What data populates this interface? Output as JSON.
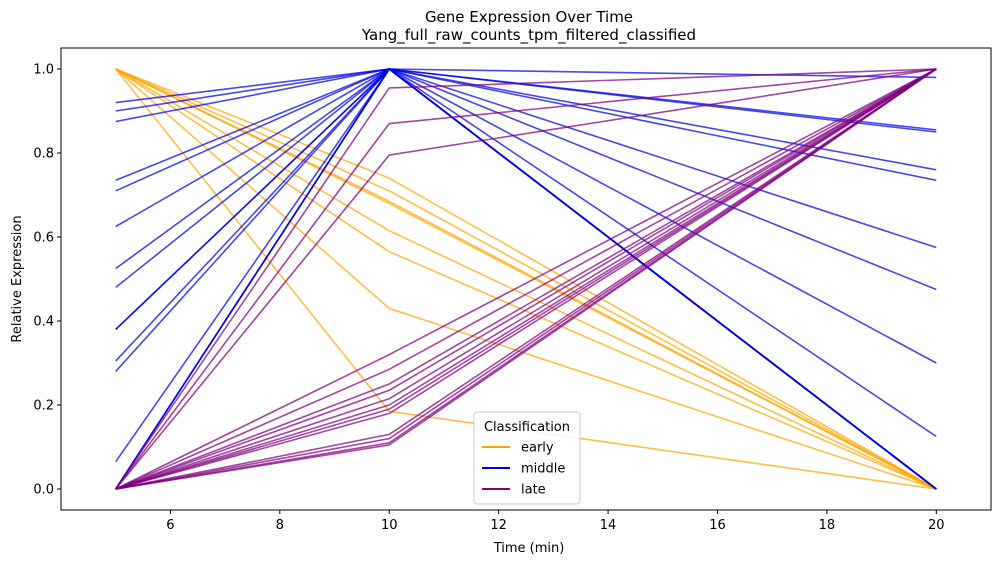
{
  "chart_data": {
    "type": "line",
    "title": "Gene Expression Over Time",
    "subtitle": "Yang_full_raw_counts_tpm_filtered_classified",
    "xlabel": "Time (min)",
    "ylabel": "Relative Expression",
    "xlim": [
      4,
      21
    ],
    "ylim": [
      -0.05,
      1.05
    ],
    "xticks": [
      6,
      8,
      10,
      12,
      14,
      16,
      18,
      20
    ],
    "yticks": [
      0.0,
      0.2,
      0.4,
      0.6,
      0.8,
      1.0
    ],
    "x": [
      5,
      10,
      20
    ],
    "grid": false,
    "legend": {
      "title": "Classification",
      "location": "lower-center",
      "entries": [
        "early",
        "middle",
        "late"
      ]
    },
    "colors": {
      "early": "#ffa500",
      "middle": "#0000ee",
      "late": "#800080"
    },
    "series": [
      {
        "class": "early",
        "values": [
          1.0,
          0.43,
          0.0
        ]
      },
      {
        "class": "early",
        "values": [
          1.0,
          0.565,
          0.0
        ]
      },
      {
        "class": "early",
        "values": [
          1.0,
          0.615,
          0.0
        ]
      },
      {
        "class": "early",
        "values": [
          1.0,
          0.68,
          0.0
        ]
      },
      {
        "class": "early",
        "values": [
          1.0,
          0.685,
          0.0
        ]
      },
      {
        "class": "early",
        "values": [
          1.0,
          0.71,
          0.0
        ]
      },
      {
        "class": "early",
        "values": [
          1.0,
          0.74,
          0.0
        ]
      },
      {
        "class": "early",
        "values": [
          1.0,
          0.185,
          0.0
        ]
      },
      {
        "class": "middle",
        "values": [
          0.92,
          1.0,
          0.98
        ]
      },
      {
        "class": "middle",
        "values": [
          0.9,
          1.0,
          0.855
        ]
      },
      {
        "class": "middle",
        "values": [
          0.875,
          1.0,
          0.85
        ]
      },
      {
        "class": "middle",
        "values": [
          0.735,
          1.0,
          0.76
        ]
      },
      {
        "class": "middle",
        "values": [
          0.71,
          1.0,
          0.735
        ]
      },
      {
        "class": "middle",
        "values": [
          0.625,
          1.0,
          0.575
        ]
      },
      {
        "class": "middle",
        "values": [
          0.525,
          1.0,
          0.475
        ]
      },
      {
        "class": "middle",
        "values": [
          0.48,
          1.0,
          0.3
        ]
      },
      {
        "class": "middle",
        "values": [
          0.38,
          1.0,
          0.125
        ]
      },
      {
        "class": "middle",
        "values": [
          0.38,
          1.0,
          0.0
        ]
      },
      {
        "class": "middle",
        "values": [
          0.305,
          1.0,
          0.0
        ]
      },
      {
        "class": "middle",
        "values": [
          0.28,
          1.0,
          0.0
        ]
      },
      {
        "class": "middle",
        "values": [
          0.065,
          1.0,
          0.0
        ]
      },
      {
        "class": "middle",
        "values": [
          0.0,
          1.0,
          0.0
        ]
      },
      {
        "class": "middle",
        "values": [
          0.0,
          1.0,
          0.0
        ]
      },
      {
        "class": "middle",
        "values": [
          0.0,
          1.0,
          0.0
        ]
      },
      {
        "class": "late",
        "values": [
          0.0,
          0.955,
          1.0
        ]
      },
      {
        "class": "late",
        "values": [
          0.0,
          0.87,
          1.0
        ]
      },
      {
        "class": "late",
        "values": [
          0.0,
          0.795,
          1.0
        ]
      },
      {
        "class": "late",
        "values": [
          0.0,
          0.32,
          1.0
        ]
      },
      {
        "class": "late",
        "values": [
          0.0,
          0.285,
          1.0
        ]
      },
      {
        "class": "late",
        "values": [
          0.0,
          0.25,
          1.0
        ]
      },
      {
        "class": "late",
        "values": [
          0.0,
          0.235,
          1.0
        ]
      },
      {
        "class": "late",
        "values": [
          0.0,
          0.215,
          1.0
        ]
      },
      {
        "class": "late",
        "values": [
          0.0,
          0.2,
          1.0
        ]
      },
      {
        "class": "late",
        "values": [
          0.0,
          0.19,
          1.0
        ]
      },
      {
        "class": "late",
        "values": [
          0.0,
          0.18,
          1.0
        ]
      },
      {
        "class": "late",
        "values": [
          0.0,
          0.13,
          1.0
        ]
      },
      {
        "class": "late",
        "values": [
          0.0,
          0.12,
          1.0
        ]
      },
      {
        "class": "late",
        "values": [
          0.0,
          0.11,
          1.0
        ]
      },
      {
        "class": "late",
        "values": [
          0.0,
          0.105,
          1.0
        ]
      }
    ]
  }
}
